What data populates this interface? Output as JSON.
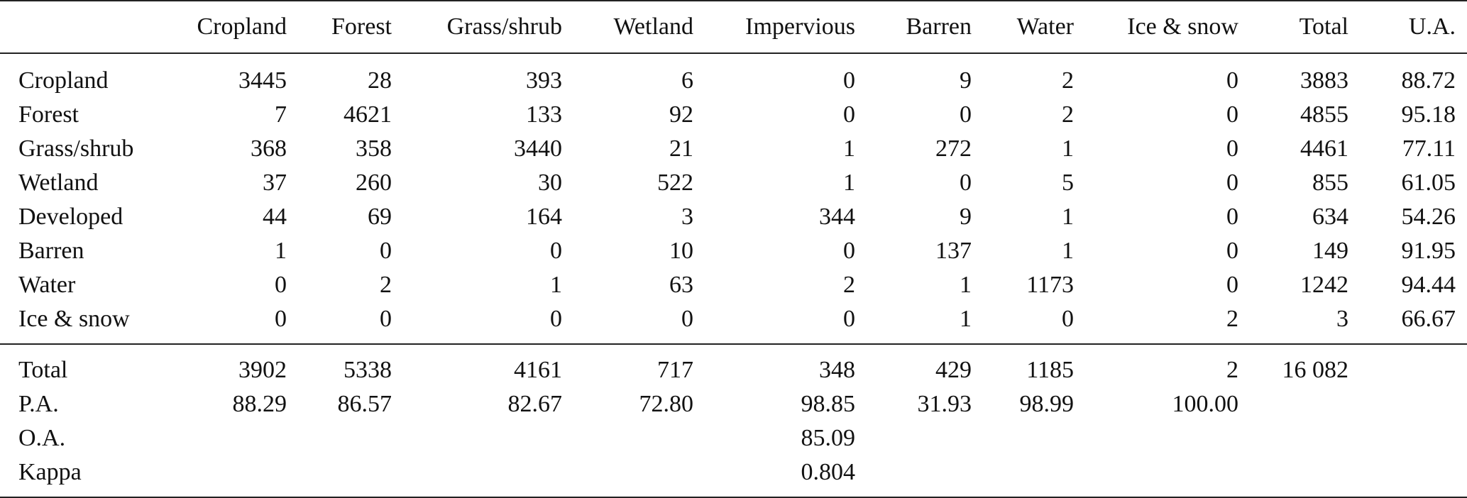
{
  "headers": [
    "",
    "Cropland",
    "Forest",
    "Grass/shrub",
    "Wetland",
    "Impervious",
    "Barren",
    "Water",
    "Ice & snow",
    "Total",
    "U.A."
  ],
  "rows": [
    {
      "label": "Cropland",
      "cells": [
        "3445",
        "28",
        "393",
        "6",
        "0",
        "9",
        "2",
        "0",
        "3883",
        "88.72"
      ]
    },
    {
      "label": "Forest",
      "cells": [
        "7",
        "4621",
        "133",
        "92",
        "0",
        "0",
        "2",
        "0",
        "4855",
        "95.18"
      ]
    },
    {
      "label": "Grass/shrub",
      "cells": [
        "368",
        "358",
        "3440",
        "21",
        "1",
        "272",
        "1",
        "0",
        "4461",
        "77.11"
      ]
    },
    {
      "label": "Wetland",
      "cells": [
        "37",
        "260",
        "30",
        "522",
        "1",
        "0",
        "5",
        "0",
        "855",
        "61.05"
      ]
    },
    {
      "label": "Developed",
      "cells": [
        "44",
        "69",
        "164",
        "3",
        "344",
        "9",
        "1",
        "0",
        "634",
        "54.26"
      ]
    },
    {
      "label": "Barren",
      "cells": [
        "1",
        "0",
        "0",
        "10",
        "0",
        "137",
        "1",
        "0",
        "149",
        "91.95"
      ]
    },
    {
      "label": "Water",
      "cells": [
        "0",
        "2",
        "1",
        "63",
        "2",
        "1",
        "1173",
        "0",
        "1242",
        "94.44"
      ]
    },
    {
      "label": "Ice & snow",
      "cells": [
        "0",
        "0",
        "0",
        "0",
        "0",
        "1",
        "0",
        "2",
        "3",
        "66.67"
      ]
    }
  ],
  "summary": {
    "total": {
      "label": "Total",
      "cells": [
        "3902",
        "5338",
        "4161",
        "717",
        "348",
        "429",
        "1185",
        "2",
        "16 082",
        ""
      ]
    },
    "pa": {
      "label": "P.A.",
      "cells": [
        "88.29",
        "86.57",
        "82.67",
        "72.80",
        "98.85",
        "31.93",
        "98.99",
        "100.00",
        "",
        ""
      ]
    },
    "oa": {
      "label": "O.A.",
      "value": "85.09"
    },
    "kappa": {
      "label": "Kappa",
      "value": "0.804"
    }
  }
}
